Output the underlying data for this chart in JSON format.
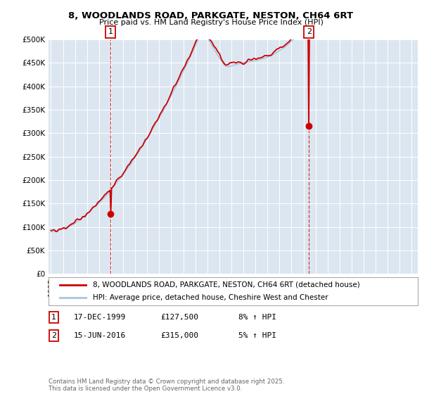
{
  "title": "8, WOODLANDS ROAD, PARKGATE, NESTON, CH64 6RT",
  "subtitle": "Price paid vs. HM Land Registry's House Price Index (HPI)",
  "ylim": [
    0,
    500000
  ],
  "yticks": [
    0,
    50000,
    100000,
    150000,
    200000,
    250000,
    300000,
    350000,
    400000,
    450000,
    500000
  ],
  "xlim_start": 1994.8,
  "xlim_end": 2025.5,
  "plot_bg": "#dce6f0",
  "line1_color": "#cc0000",
  "line2_color": "#aac4dd",
  "sale1_x": 1999.96,
  "sale1_y": 127500,
  "sale2_x": 2016.45,
  "sale2_y": 315000,
  "legend1": "8, WOODLANDS ROAD, PARKGATE, NESTON, CH64 6RT (detached house)",
  "legend2": "HPI: Average price, detached house, Cheshire West and Chester",
  "table_rows": [
    [
      "1",
      "17-DEC-1999",
      "£127,500",
      "8% ↑ HPI"
    ],
    [
      "2",
      "15-JUN-2016",
      "£315,000",
      "5% ↑ HPI"
    ]
  ],
  "footer": "Contains HM Land Registry data © Crown copyright and database right 2025.\nThis data is licensed under the Open Government Licence v3.0.",
  "vline1_x": 1999.96,
  "vline2_x": 2016.45,
  "annot_box_color": "#cc0000",
  "grid_color": "#ffffff"
}
